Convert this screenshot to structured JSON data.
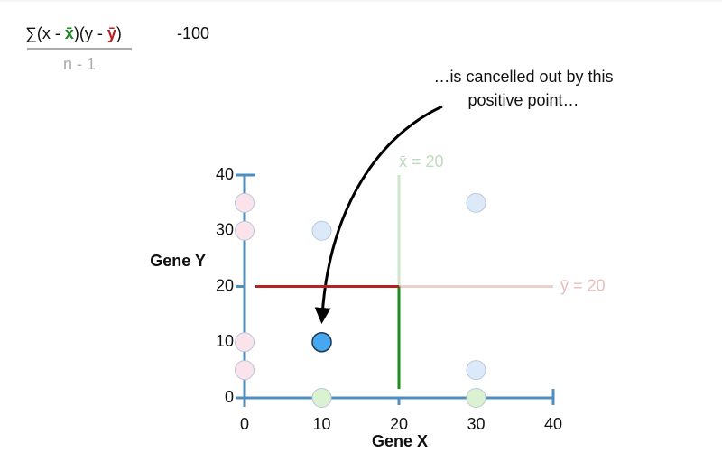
{
  "chart_data": {
    "type": "scatter",
    "formula": {
      "numerator": [
        "∑(x - ",
        "x̄",
        ")(y - ",
        "ȳ",
        ")"
      ],
      "denominator": "n - 1",
      "result": -100
    },
    "annotation": "…is cancelled out by this\npositive point…",
    "x_label": "Gene X",
    "y_label": "Gene Y",
    "xlim": [
      0,
      40
    ],
    "ylim": [
      0,
      40
    ],
    "xticks": [
      0,
      10,
      20,
      30,
      40
    ],
    "yticks": [
      0,
      10,
      20,
      30,
      40
    ],
    "axis_color": "#4f8fc0",
    "series": [
      {
        "color": "#fbe3ec",
        "x": [
          0,
          0,
          0,
          0
        ],
        "y": [
          35,
          30,
          10,
          5
        ]
      },
      {
        "color": "#daf2d2",
        "x": [
          10,
          30
        ],
        "y": [
          0,
          0
        ]
      },
      {
        "color": "#dbe9f8",
        "x": [
          10,
          30,
          30
        ],
        "y": [
          30,
          35,
          5
        ]
      },
      {
        "color": "#47a7ef",
        "x": [
          10
        ],
        "y": [
          10
        ]
      }
    ],
    "mean_lines": [
      {
        "axis": "x",
        "value": 20,
        "label": "x̄ = 20",
        "color": "#1d8c1d"
      },
      {
        "axis": "y",
        "value": 20,
        "label": "ȳ = 20",
        "color": "#b52020"
      }
    ]
  }
}
